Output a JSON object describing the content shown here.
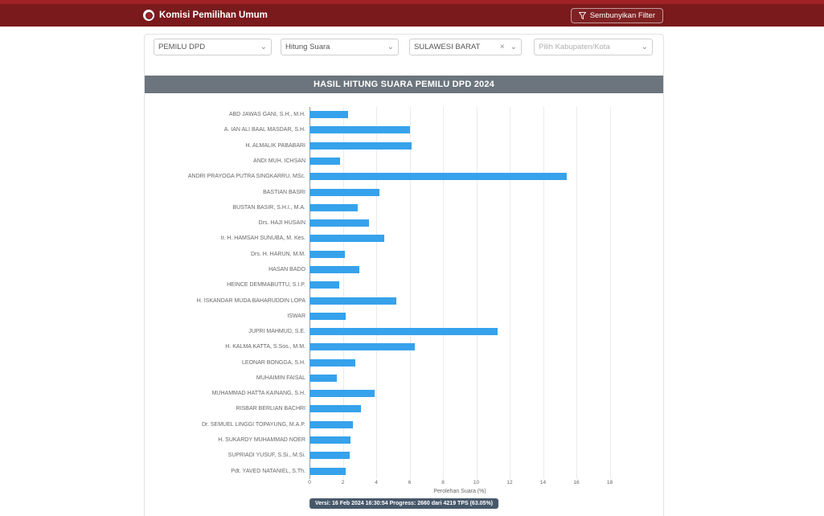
{
  "header": {
    "brand": "Komisi Pemilihan Umum",
    "hide_filter_label": "Sembunyikan Filter"
  },
  "filters": {
    "pemilu_value": "PEMILU DPD",
    "tahap_value": "Hitung Suara",
    "provinsi_value": "SULAWESI BARAT",
    "provinsi_clear": "×",
    "kabupaten_placeholder": "Pilih Kabupaten/Kota",
    "chevron": "⌄"
  },
  "chart_title": "HASIL HITUNG SUARA PEMILU DPD 2024",
  "chart_data": {
    "type": "bar",
    "orientation": "horizontal",
    "title": "HASIL HITUNG SUARA PEMILU DPD 2024",
    "xlabel": "Perolehan Suara (%)",
    "ylabel": "",
    "xlim": [
      0,
      18
    ],
    "xticks": [
      0,
      2,
      4,
      6,
      8,
      10,
      12,
      14,
      16,
      18
    ],
    "grid": true,
    "bar_color": "#36a2eb",
    "categories": [
      "ABD JAWAS GANI, S.H., M.H.",
      "A. IAN ALI BAAL MASDAR, S.H.",
      "H. ALMALIK PABABARI",
      "ANDI MUH. ICHSAN",
      "ANDRI PRAYOGA PUTRA SINGKARRU, MSc.",
      "BASTIAN BASRI",
      "BUSTAN BASIR, S.H.I., M.A.",
      "Drs. HAJI HUSAIN",
      "Ir. H. HAMSAH SUNUBA, M. Kes.",
      "Drs. H. HARUN, M.M.",
      "HASAN BADO",
      "HEINCE DEMMABUTTU, S.I.P.",
      "H. ISKANDAR MUDA BAHARUDDIN LOPA",
      "ISWAR",
      "JUPRI MAHMUD, S.E.",
      "H. KALMA KATTA, S.Sos., M.M.",
      "LEONAR BONGGA, S.H.",
      "MUHAIMIN FAISAL",
      "MUHAMMAD HATTA KAINANG, S.H.",
      "RISBAR BERLIAN BACHRI",
      "Dr. SEMUEL LINGGI TOPAYUNG, M.A.P.",
      "H. SUKARDY MUHAMMAD NOER",
      "SUPRIADI YUSUF, S.Si., M.Si.",
      "Pdt. YAVED NATANIEL, S.Th."
    ],
    "values": [
      2.3,
      6.0,
      6.1,
      1.85,
      15.4,
      4.2,
      2.9,
      3.55,
      4.5,
      2.1,
      3.0,
      1.8,
      5.2,
      2.15,
      11.3,
      6.3,
      2.75,
      1.65,
      3.9,
      3.1,
      2.6,
      2.45,
      2.4,
      2.15
    ]
  },
  "footer_badge": "Versi: 16 Feb 2024 16:30:54 Progress: 2660 dari 4219 TPS (63.05%)",
  "colors": {
    "header_bg": "#7b1a1c",
    "top_strip": "#a12226",
    "title_bar_bg": "#6c757d",
    "bar": "#36a2eb",
    "badge_bg": "#47586b"
  }
}
